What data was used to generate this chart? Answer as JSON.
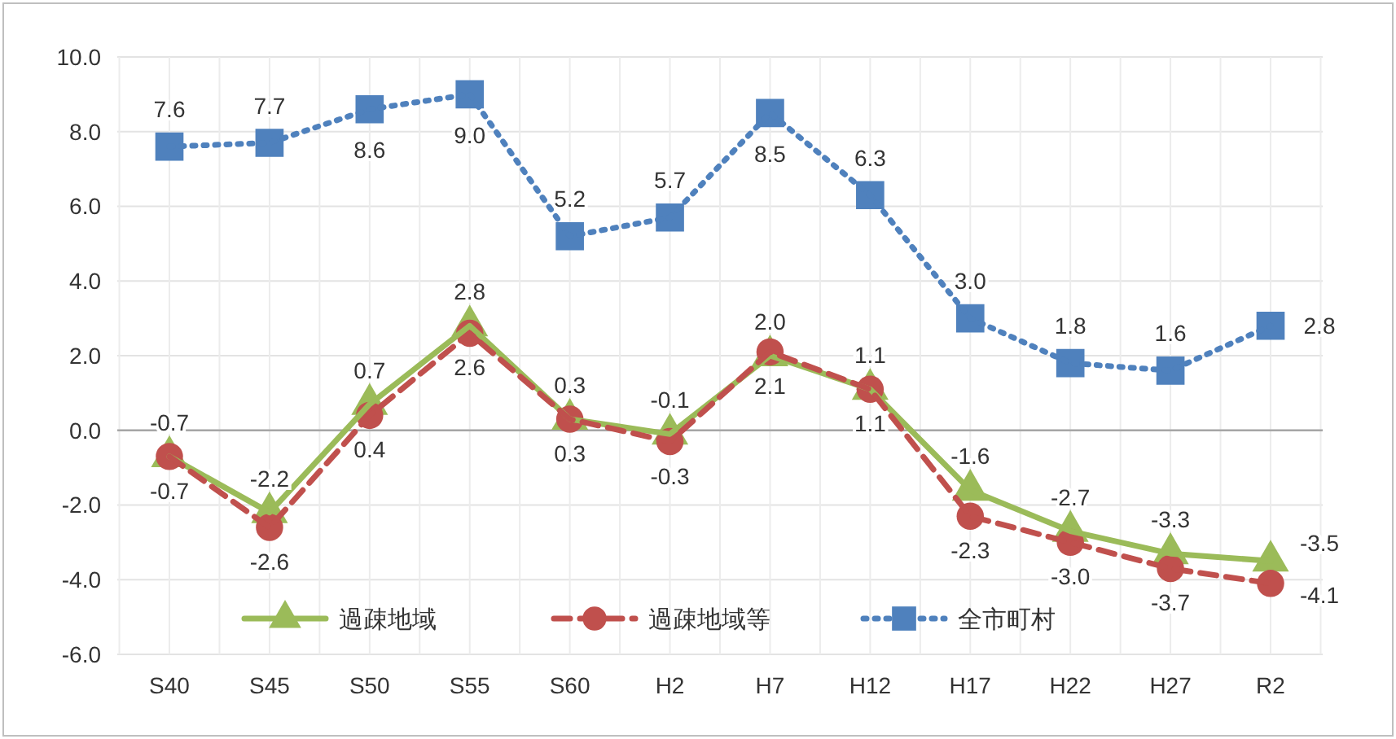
{
  "chart_data": {
    "type": "line",
    "categories": [
      "S40",
      "S45",
      "S50",
      "S55",
      "S60",
      "H2",
      "H7",
      "H12",
      "H17",
      "H22",
      "H27",
      "R2"
    ],
    "series": [
      {
        "name": "過疎地域",
        "color": "#9bbb59",
        "marker": "triangle",
        "line_style": "solid",
        "values": [
          -0.7,
          -2.2,
          0.7,
          2.8,
          0.3,
          -0.1,
          2.0,
          1.1,
          -1.6,
          -2.7,
          -3.3,
          -3.5
        ],
        "value_labels": [
          "-0.7",
          "-2.2",
          "0.7",
          "2.8",
          "0.3",
          "-0.1",
          "2.0",
          "1.1",
          "-1.6",
          "-2.7",
          "-3.3",
          "-3.5"
        ]
      },
      {
        "name": "過疎地域等",
        "color": "#c0504d",
        "marker": "circle",
        "line_style": "dashed",
        "values": [
          -0.7,
          -2.6,
          0.4,
          2.6,
          0.3,
          -0.3,
          2.1,
          1.1,
          -2.3,
          -3.0,
          -3.7,
          -4.1
        ],
        "value_labels": [
          "-0.7",
          "-2.6",
          "0.4",
          "2.6",
          "0.3",
          "-0.3",
          "2.1",
          "1.1",
          "-2.3",
          "-3.0",
          "-3.7",
          "-4.1"
        ]
      },
      {
        "name": "全市町村",
        "color": "#4f81bd",
        "marker": "square",
        "line_style": "dotted",
        "values": [
          7.6,
          7.7,
          8.6,
          9.0,
          5.2,
          5.7,
          8.5,
          6.3,
          3.0,
          1.8,
          1.6,
          2.8
        ],
        "value_labels": [
          "7.6",
          "7.7",
          "8.6",
          "9.0",
          "5.2",
          "5.7",
          "8.5",
          "6.3",
          "3.0",
          "1.8",
          "1.6",
          "2.8"
        ]
      }
    ],
    "ylim": [
      -6,
      10
    ],
    "yticks": [
      {
        "value": -6,
        "label": "-6.0"
      },
      {
        "value": -4,
        "label": "-4.0"
      },
      {
        "value": -2,
        "label": "-2.0"
      },
      {
        "value": 0,
        "label": "0.0"
      },
      {
        "value": 2,
        "label": "2.0"
      },
      {
        "value": 4,
        "label": "4.0"
      },
      {
        "value": 6,
        "label": "6.0"
      },
      {
        "value": 8,
        "label": "8.0"
      },
      {
        "value": 10,
        "label": "10.0"
      }
    ],
    "ref_lines": [
      {
        "axis": "y",
        "value": 0,
        "color": "#a6a6a6"
      }
    ],
    "grid": true,
    "legend": "bottom",
    "data_labels": true
  }
}
